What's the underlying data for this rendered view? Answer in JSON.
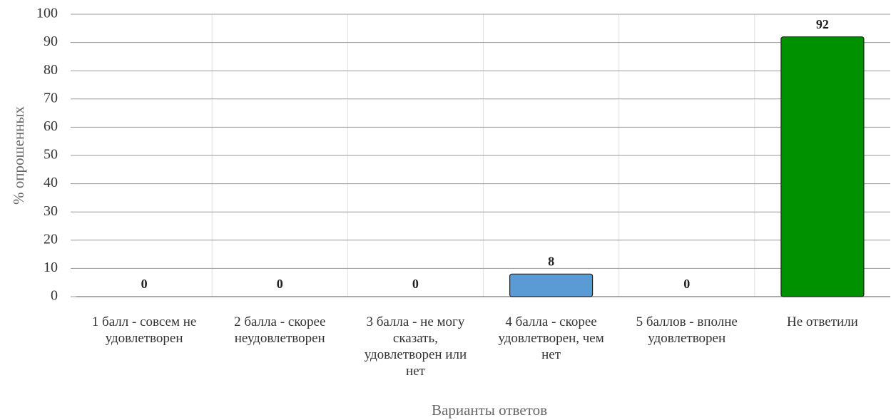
{
  "chart_data": {
    "type": "bar",
    "categories": [
      "1 балл - совсем не удовлетворен",
      "2 балла - скорее неудовлетворен",
      "3 балла - не могу сказать, удовлетворен или нет",
      "4 балла - скорее удовлетворен, чем нет",
      "5 баллов - вполне удовлетворен",
      "Не ответили"
    ],
    "values": [
      0,
      0,
      0,
      8,
      0,
      92
    ],
    "colors": [
      "#5b9bd5",
      "#5b9bd5",
      "#5b9bd5",
      "#5b9bd5",
      "#5b9bd5",
      "#009100"
    ],
    "x_label": "Варианты ответов",
    "y_label": "% опрошенных",
    "ylim": [
      0,
      100
    ],
    "yticks": [
      0,
      10,
      20,
      30,
      40,
      50,
      60,
      70,
      80,
      90,
      100
    ],
    "grid": true
  }
}
